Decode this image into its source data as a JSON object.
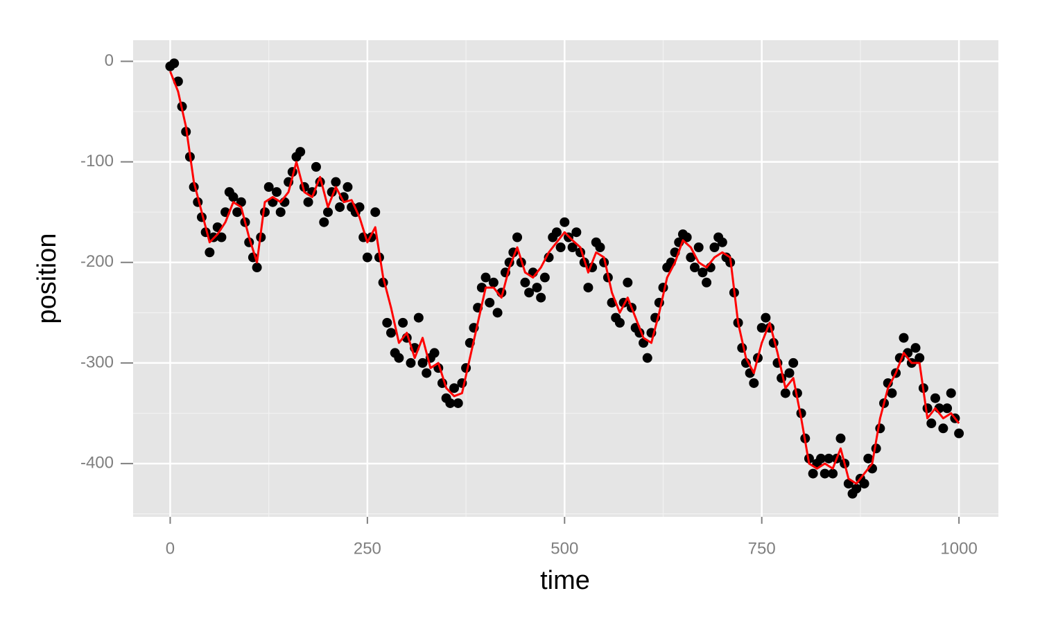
{
  "chart_data": {
    "type": "scatter",
    "x_label": "time",
    "y_label": "position",
    "xlim": [
      -47,
      1050
    ],
    "ylim": [
      -453,
      21
    ],
    "xticks": [
      0,
      250,
      500,
      750,
      1000
    ],
    "yticks": [
      0,
      -100,
      -200,
      -300,
      -400
    ],
    "xminor": [
      125,
      375,
      625,
      875
    ],
    "yminor": [
      -50,
      -150,
      -250,
      -350,
      -450
    ],
    "grid": true,
    "panel_color": "#e5e5e5",
    "series": [
      {
        "type": "scatter",
        "color": "#000000",
        "x": [
          0,
          5,
          10,
          15,
          20,
          25,
          30,
          35,
          40,
          45,
          50,
          55,
          60,
          65,
          70,
          75,
          80,
          85,
          90,
          95,
          100,
          105,
          110,
          115,
          120,
          125,
          130,
          135,
          140,
          145,
          150,
          155,
          160,
          165,
          170,
          175,
          180,
          185,
          190,
          195,
          200,
          205,
          210,
          215,
          220,
          225,
          230,
          235,
          240,
          245,
          250,
          255,
          260,
          265,
          270,
          275,
          280,
          285,
          290,
          295,
          300,
          305,
          310,
          315,
          320,
          325,
          330,
          335,
          340,
          345,
          350,
          355,
          360,
          365,
          370,
          375,
          380,
          385,
          390,
          395,
          400,
          405,
          410,
          415,
          420,
          425,
          430,
          435,
          440,
          445,
          450,
          455,
          460,
          465,
          470,
          475,
          480,
          485,
          490,
          495,
          500,
          505,
          510,
          515,
          520,
          525,
          530,
          535,
          540,
          545,
          550,
          555,
          560,
          565,
          570,
          575,
          580,
          585,
          590,
          595,
          600,
          605,
          610,
          615,
          620,
          625,
          630,
          635,
          640,
          645,
          650,
          655,
          660,
          665,
          670,
          675,
          680,
          685,
          690,
          695,
          700,
          705,
          710,
          715,
          720,
          725,
          730,
          735,
          740,
          745,
          750,
          755,
          760,
          765,
          770,
          775,
          780,
          785,
          790,
          795,
          800,
          805,
          810,
          815,
          820,
          825,
          830,
          835,
          840,
          845,
          850,
          855,
          860,
          865,
          870,
          875,
          880,
          885,
          890,
          895,
          900,
          905,
          910,
          915,
          920,
          925,
          930,
          935,
          940,
          945,
          950,
          955,
          960,
          965,
          970,
          975,
          980,
          985,
          990,
          995,
          1000
        ],
        "values": [
          -5,
          -2,
          -20,
          -45,
          -70,
          -95,
          -125,
          -140,
          -155,
          -170,
          -190,
          -175,
          -165,
          -175,
          -150,
          -130,
          -135,
          -150,
          -140,
          -160,
          -180,
          -195,
          -205,
          -175,
          -150,
          -125,
          -140,
          -130,
          -150,
          -140,
          -120,
          -110,
          -95,
          -90,
          -125,
          -140,
          -130,
          -105,
          -120,
          -160,
          -150,
          -130,
          -120,
          -145,
          -135,
          -125,
          -145,
          -150,
          -145,
          -175,
          -195,
          -175,
          -150,
          -195,
          -220,
          -260,
          -270,
          -290,
          -295,
          -260,
          -275,
          -300,
          -285,
          -255,
          -300,
          -310,
          -295,
          -290,
          -305,
          -320,
          -335,
          -340,
          -325,
          -340,
          -320,
          -305,
          -280,
          -265,
          -245,
          -225,
          -215,
          -240,
          -220,
          -250,
          -230,
          -210,
          -200,
          -190,
          -175,
          -200,
          -220,
          -230,
          -210,
          -225,
          -235,
          -215,
          -195,
          -175,
          -170,
          -185,
          -160,
          -175,
          -185,
          -170,
          -190,
          -200,
          -225,
          -205,
          -180,
          -185,
          -200,
          -215,
          -240,
          -255,
          -260,
          -240,
          -220,
          -245,
          -265,
          -270,
          -280,
          -295,
          -270,
          -255,
          -240,
          -225,
          -205,
          -200,
          -190,
          -180,
          -172,
          -175,
          -195,
          -205,
          -185,
          -210,
          -220,
          -205,
          -185,
          -175,
          -180,
          -195,
          -200,
          -230,
          -260,
          -285,
          -300,
          -310,
          -320,
          -295,
          -265,
          -255,
          -265,
          -280,
          -300,
          -315,
          -330,
          -310,
          -300,
          -330,
          -350,
          -375,
          -395,
          -410,
          -400,
          -395,
          -410,
          -395,
          -410,
          -395,
          -375,
          -400,
          -420,
          -430,
          -425,
          -415,
          -420,
          -395,
          -405,
          -385,
          -365,
          -340,
          -320,
          -330,
          -310,
          -295,
          -275,
          -290,
          -300,
          -285,
          -295,
          -325,
          -345,
          -360,
          -335,
          -345,
          -365,
          -345,
          -330,
          -355,
          -370
        ]
      },
      {
        "type": "line",
        "color": "#ff0000",
        "x": [
          0,
          10,
          20,
          30,
          40,
          50,
          60,
          70,
          80,
          90,
          100,
          110,
          120,
          130,
          140,
          150,
          160,
          170,
          180,
          190,
          200,
          210,
          220,
          230,
          240,
          250,
          260,
          270,
          280,
          290,
          300,
          310,
          320,
          330,
          340,
          350,
          360,
          370,
          380,
          390,
          400,
          410,
          420,
          430,
          440,
          450,
          460,
          470,
          480,
          490,
          500,
          510,
          520,
          530,
          540,
          550,
          560,
          570,
          580,
          590,
          600,
          610,
          620,
          630,
          640,
          650,
          660,
          670,
          680,
          690,
          700,
          710,
          720,
          730,
          740,
          750,
          760,
          770,
          780,
          790,
          800,
          810,
          820,
          830,
          840,
          850,
          860,
          870,
          880,
          890,
          900,
          910,
          920,
          930,
          940,
          950,
          960,
          970,
          980,
          990,
          1000
        ],
        "values": [
          -10,
          -30,
          -65,
          -120,
          -150,
          -180,
          -172,
          -160,
          -140,
          -145,
          -175,
          -200,
          -140,
          -135,
          -140,
          -130,
          -100,
          -130,
          -135,
          -115,
          -145,
          -125,
          -140,
          -138,
          -155,
          -180,
          -165,
          -215,
          -245,
          -280,
          -270,
          -295,
          -275,
          -305,
          -300,
          -325,
          -333,
          -330,
          -295,
          -260,
          -225,
          -225,
          -235,
          -205,
          -185,
          -210,
          -215,
          -205,
          -190,
          -180,
          -170,
          -178,
          -185,
          -210,
          -190,
          -195,
          -230,
          -250,
          -235,
          -255,
          -275,
          -280,
          -250,
          -215,
          -200,
          -178,
          -185,
          -200,
          -205,
          -195,
          -190,
          -195,
          -260,
          -295,
          -310,
          -280,
          -260,
          -290,
          -325,
          -315,
          -355,
          -400,
          -405,
          -400,
          -405,
          -385,
          -415,
          -420,
          -410,
          -400,
          -355,
          -325,
          -310,
          -290,
          -300,
          -300,
          -355,
          -345,
          -355,
          -350,
          -360
        ]
      }
    ]
  }
}
